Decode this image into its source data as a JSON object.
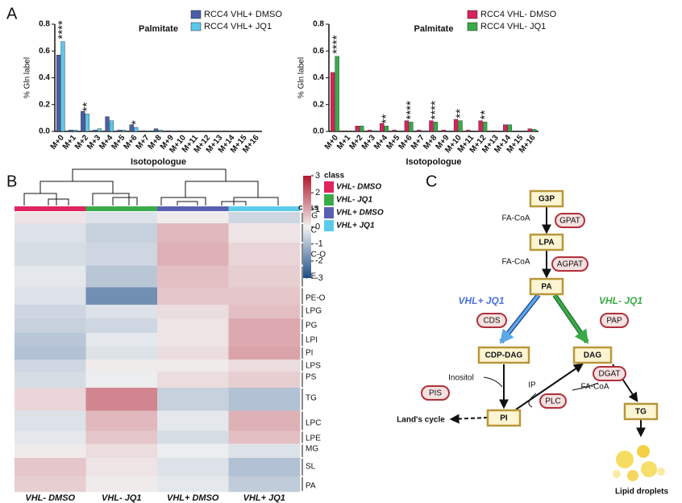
{
  "panel_labels": [
    "A",
    "B",
    "C"
  ],
  "chart_data": [
    {
      "type": "bar",
      "title": "Palmitate",
      "x_label": "Isotopologue",
      "y_label": "% Gln label",
      "categories": [
        "M+0",
        "M+1",
        "M+2",
        "M+3",
        "M+4",
        "M+5",
        "M+6",
        "M+7",
        "M+8",
        "M+9",
        "M+10",
        "M+11",
        "M+12",
        "M+13",
        "M+14",
        "M+15",
        "M+16"
      ],
      "series": [
        {
          "name": "RCC4 VHL+ DMSO",
          "color": "#4a5da8",
          "values": [
            0.57,
            0.01,
            0.15,
            0.01,
            0.11,
            0.01,
            0.05,
            0.005,
            0.02,
            0.005,
            0.005,
            0.002,
            0.002,
            0.002,
            0.002,
            0.002,
            0.002
          ]
        },
        {
          "name": "RCC4 VHL+ JQ1",
          "color": "#5cc8ea",
          "values": [
            0.67,
            0.01,
            0.13,
            0.02,
            0.08,
            0.01,
            0.03,
            0.005,
            0.01,
            0.003,
            0.003,
            0.002,
            0.002,
            0.002,
            0.002,
            0.002,
            0.002
          ]
        }
      ],
      "ylim": [
        0,
        0.8
      ],
      "yticks": [
        {
          "value": 0,
          "label": "0.0"
        },
        0.2,
        0.4,
        0.6,
        0.8
      ],
      "annotations": [
        {
          "category": "M+0",
          "text": "****"
        },
        {
          "category": "M+2",
          "text": "**"
        },
        {
          "category": "M+6",
          "text": "*"
        }
      ],
      "legend": "upper right"
    },
    {
      "type": "bar",
      "title": "Palmitate",
      "x_label": "Isotopologue",
      "y_label": "% Gln label",
      "categories": [
        "M+0",
        "M+1",
        "M+2",
        "M+3",
        "M+4",
        "M+5",
        "M+6",
        "M+7",
        "M+8",
        "M+9",
        "M+10",
        "M+11",
        "M+12",
        "M+13",
        "M+14",
        "M+15",
        "M+16"
      ],
      "series": [
        {
          "name": "RCC4 VHL- DMSO",
          "color": "#d8235a",
          "values": [
            0.44,
            0.005,
            0.04,
            0.01,
            0.06,
            0.01,
            0.08,
            0.01,
            0.08,
            0.01,
            0.09,
            0.01,
            0.08,
            0.005,
            0.05,
            0.003,
            0.02
          ]
        },
        {
          "name": "RCC4 VHL- JQ1",
          "color": "#3aaa48",
          "values": [
            0.56,
            0.005,
            0.04,
            0.005,
            0.04,
            0.005,
            0.07,
            0.005,
            0.07,
            0.005,
            0.08,
            0.005,
            0.07,
            0.003,
            0.05,
            0.002,
            0.015
          ]
        }
      ],
      "ylim": [
        0,
        0.8
      ],
      "yticks": [
        {
          "value": 0,
          "label": "0.0"
        },
        0.2,
        0.4,
        0.6,
        0.8
      ],
      "annotations": [
        {
          "category": "M+0",
          "text": "****"
        },
        {
          "category": "M+4",
          "text": "**"
        },
        {
          "category": "M+6",
          "text": "****"
        },
        {
          "category": "M+8",
          "text": "****"
        },
        {
          "category": "M+10",
          "text": "**"
        },
        {
          "category": "M+12",
          "text": "**"
        }
      ],
      "legend": "upper right"
    },
    {
      "type": "heatmap",
      "legend_title": "class",
      "row_header": "class",
      "groups": [
        {
          "name": "VHL- DMSO",
          "color": "#e0245e"
        },
        {
          "name": "VHL- JQ1",
          "color": "#3aab4a"
        },
        {
          "name": "VHL+ DMSO",
          "color": "#5a5fb0"
        },
        {
          "name": "VHL+ JQ1",
          "color": "#5ccbeb"
        }
      ],
      "rows": [
        "DG",
        "PC",
        "PC-O",
        "PE",
        "PE-O",
        "LPG",
        "PG",
        "LPI",
        "PI",
        "LPS",
        "PS",
        "TG",
        "LPC",
        "LPE",
        "MG",
        "SL",
        "PA"
      ],
      "values": [
        [
          0.2,
          -0.3,
          0.1,
          -0.5
        ],
        [
          -0.3,
          -0.6,
          0.8,
          0.2
        ],
        [
          -0.4,
          -0.5,
          0.9,
          0.4
        ],
        [
          -0.2,
          -0.8,
          0.7,
          0.5
        ],
        [
          -0.3,
          -1.8,
          0.6,
          0.6
        ],
        [
          -0.5,
          -0.3,
          0.3,
          0.7
        ],
        [
          -0.6,
          -0.5,
          0.2,
          1.0
        ],
        [
          -0.8,
          -0.2,
          0.2,
          1.0
        ],
        [
          -0.9,
          -0.3,
          0.3,
          1.1
        ],
        [
          -0.5,
          0.1,
          0.1,
          0.3
        ],
        [
          -0.4,
          -0.1,
          0.3,
          0.5
        ],
        [
          0.4,
          1.5,
          -0.6,
          -0.9
        ],
        [
          -0.3,
          0.8,
          -0.2,
          0.9
        ],
        [
          -0.2,
          0.6,
          -0.4,
          0.7
        ],
        [
          0.1,
          0.3,
          -0.1,
          -0.3
        ],
        [
          0.6,
          0.2,
          -0.3,
          -0.9
        ],
        [
          0.5,
          0.1,
          -0.2,
          -0.7
        ]
      ],
      "colormap": [
        "#1b4d89",
        "#f2f2f2",
        "#b0182c"
      ],
      "zlim": [
        -3,
        3
      ],
      "zticks": [
        3,
        2,
        1,
        0,
        -1,
        -2,
        -3
      ]
    }
  ],
  "diagram": {
    "nodes": [
      "G3P",
      "LPA",
      "PA",
      "CDP-DAG",
      "DAG",
      "PI",
      "TG"
    ],
    "enzymes": [
      "GPAT",
      "AGPAT",
      "CDS",
      "PAP",
      "PIS",
      "PLC",
      "DGAT"
    ],
    "labels": [
      "FA-CoA",
      "FA-CoA",
      "VHL+ JQ1",
      "VHL- JQ1",
      "Inositol",
      "IP",
      "FA-CoA",
      "Land's cycle",
      "Lipid droplets"
    ]
  }
}
